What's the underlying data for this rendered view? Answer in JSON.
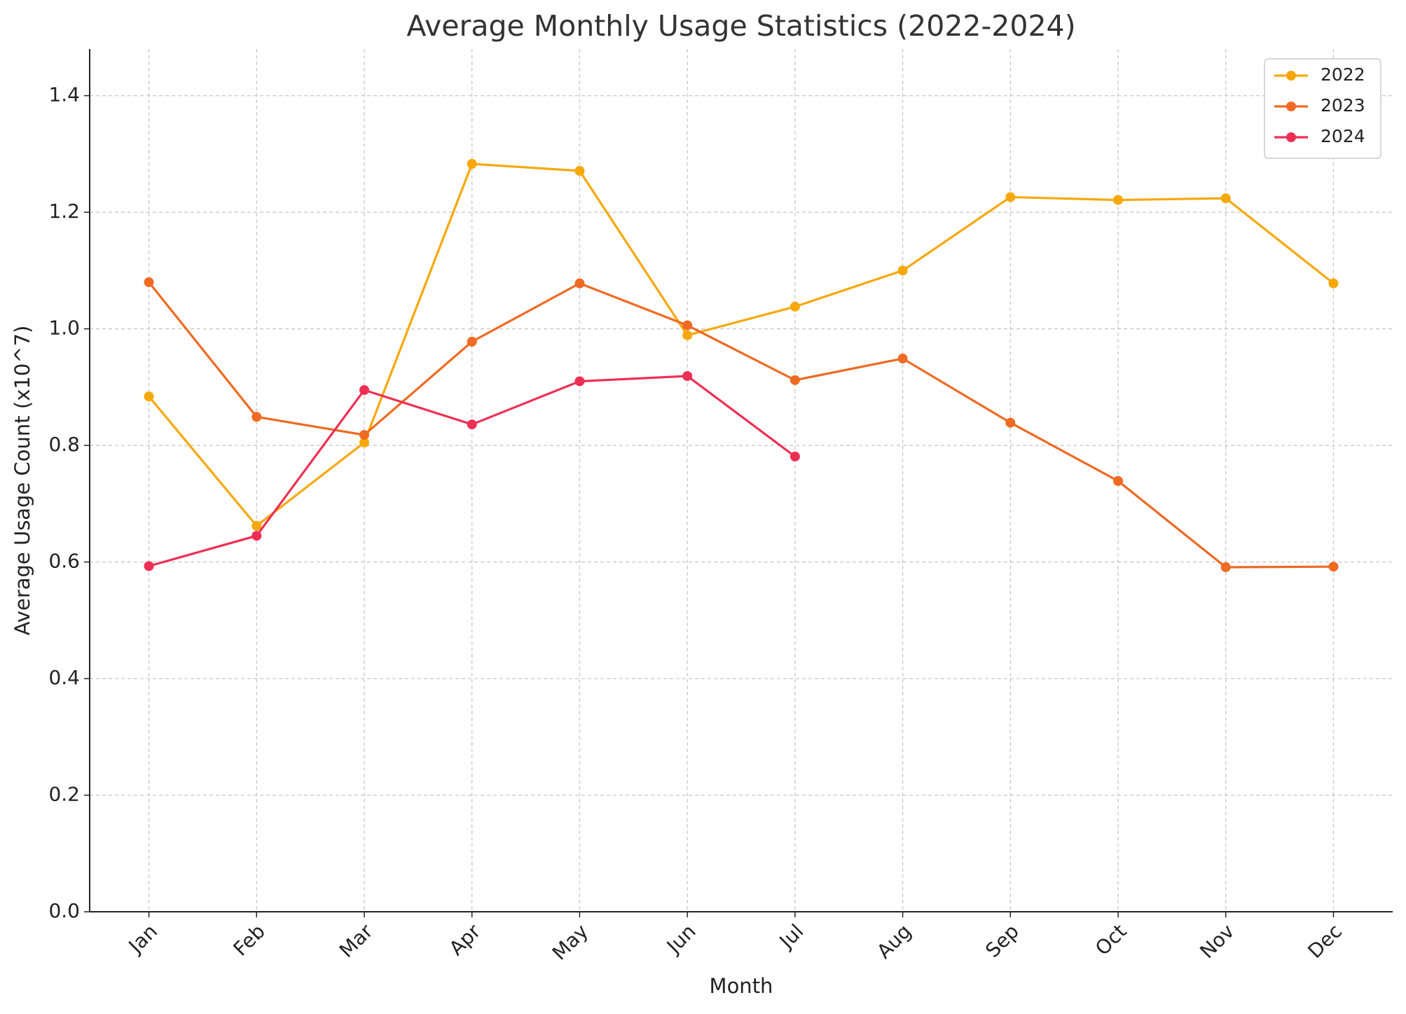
{
  "chart_data": {
    "type": "line",
    "title": "Average Monthly Usage Statistics (2022-2024)",
    "x_label": "Month",
    "y_label": "Average Usage Count (x10^7)",
    "categories": [
      "Jan",
      "Feb",
      "Mar",
      "Apr",
      "May",
      "Jun",
      "Jul",
      "Aug",
      "Sep",
      "Oct",
      "Nov",
      "Dec"
    ],
    "series": [
      {
        "name": "2022",
        "color": "#f6a80b",
        "values": [
          0.884,
          0.662,
          0.805,
          1.283,
          1.271,
          0.989,
          1.038,
          1.1,
          1.226,
          1.221,
          1.224,
          1.078
        ]
      },
      {
        "name": "2023",
        "color": "#ef6a22",
        "values": [
          1.08,
          0.849,
          0.818,
          0.978,
          1.078,
          1.006,
          0.912,
          0.949,
          0.839,
          0.739,
          0.591,
          0.592
        ]
      },
      {
        "name": "2024",
        "color": "#ee2f54",
        "values": [
          0.593,
          0.645,
          0.895,
          0.836,
          0.91,
          0.919,
          0.781,
          null,
          null,
          null,
          null,
          null
        ]
      }
    ],
    "ylim": [
      0,
      1.48
    ],
    "yticks": [
      {
        "value": 0,
        "label": "0.0"
      },
      0.2,
      0.4,
      0.6,
      0.8,
      {
        "value": 1,
        "label": "1.0"
      },
      1.2,
      1.4
    ],
    "grid": true,
    "legend": "upper right"
  }
}
